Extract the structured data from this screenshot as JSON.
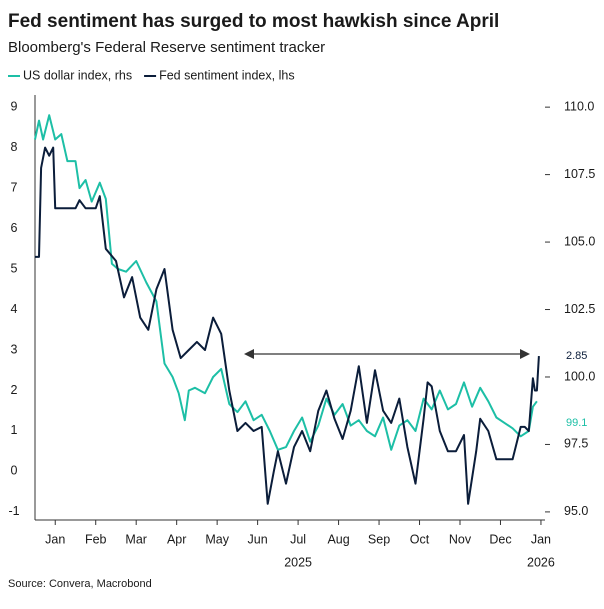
{
  "chart_data": {
    "type": "line",
    "title": "Fed sentiment has surged to most hawkish since April",
    "subtitle": "Bloomberg's Federal Reserve sentiment tracker",
    "source": "Source: Convera, Macrobond",
    "xlim": [
      0,
      12.6
    ],
    "xticks": [
      {
        "value": 0.5,
        "label": "Jan"
      },
      {
        "value": 1.5,
        "label": "Feb"
      },
      {
        "value": 2.5,
        "label": "Mar"
      },
      {
        "value": 3.5,
        "label": "Apr"
      },
      {
        "value": 4.5,
        "label": "May"
      },
      {
        "value": 5.5,
        "label": "Jun"
      },
      {
        "value": 6.5,
        "label": "Jul"
      },
      {
        "value": 7.5,
        "label": "Aug"
      },
      {
        "value": 8.5,
        "label": "Sep"
      },
      {
        "value": 9.5,
        "label": "Oct"
      },
      {
        "value": 10.5,
        "label": "Nov"
      },
      {
        "value": 11.5,
        "label": "Dec"
      },
      {
        "value": 12.5,
        "label": "Jan"
      }
    ],
    "year_labels": [
      {
        "value": 6.5,
        "label": "2025"
      },
      {
        "value": 12.5,
        "label": "2026"
      }
    ],
    "ylim": [
      -1.2,
      9.3
    ],
    "yticks": [
      -1,
      0,
      1,
      2,
      3,
      4,
      5,
      6,
      7,
      8,
      9
    ],
    "y2lim": [
      94.7,
      110.45
    ],
    "y2ticks": [
      {
        "value": 95,
        "label": "95.0"
      },
      {
        "value": 97.5,
        "label": "97.5"
      },
      {
        "value": 100,
        "label": "100.0"
      },
      {
        "value": 102.5,
        "label": "102.5"
      },
      {
        "value": 105,
        "label": "105.0"
      },
      {
        "value": 107.5,
        "label": "107.5"
      },
      {
        "value": 110,
        "label": "110.0"
      }
    ],
    "series": [
      {
        "name": "US dollar index, rhs",
        "color": "#1dbfa6",
        "axis": "y2",
        "x": [
          0,
          0.1,
          0.2,
          0.35,
          0.5,
          0.65,
          0.8,
          1.0,
          1.1,
          1.25,
          1.4,
          1.6,
          1.75,
          1.9,
          2.05,
          2.25,
          2.5,
          2.75,
          3.0,
          3.2,
          3.4,
          3.55,
          3.7,
          3.8,
          3.95,
          4.2,
          4.4,
          4.6,
          4.8,
          5.0,
          5.2,
          5.4,
          5.6,
          5.8,
          6.0,
          6.2,
          6.4,
          6.6,
          6.8,
          7.0,
          7.2,
          7.4,
          7.6,
          7.8,
          8.0,
          8.2,
          8.4,
          8.6,
          8.8,
          9.0,
          9.2,
          9.4,
          9.6,
          9.8,
          10.0,
          10.2,
          10.4,
          10.6,
          10.8,
          11.0,
          11.2,
          11.4,
          11.6,
          11.8,
          12.0,
          12.2,
          12.3,
          12.4
        ],
        "values": [
          108.8,
          109.5,
          108.8,
          109.7,
          108.8,
          109.0,
          108.0,
          108.0,
          107.0,
          107.3,
          106.5,
          107.2,
          106.6,
          104.2,
          104.0,
          103.9,
          104.3,
          103.5,
          102.8,
          100.5,
          100.0,
          99.4,
          98.4,
          99.5,
          99.6,
          99.4,
          100.0,
          100.3,
          99.0,
          98.7,
          99.1,
          98.4,
          98.6,
          98.0,
          97.3,
          97.4,
          98.0,
          98.5,
          97.6,
          98.2,
          99.2,
          98.6,
          99.0,
          98.2,
          98.4,
          98.0,
          97.8,
          98.5,
          97.3,
          98.2,
          98.4,
          98.0,
          99.2,
          98.8,
          99.5,
          98.8,
          99.0,
          99.8,
          98.9,
          99.6,
          99.1,
          98.5,
          98.3,
          98.1,
          97.8,
          98.0,
          98.9,
          99.1
        ]
      },
      {
        "name": "Fed sentiment index, lhs",
        "color": "#0b1d3a",
        "x": [
          0,
          0.1,
          0.15,
          0.25,
          0.35,
          0.45,
          0.5,
          0.75,
          1.0,
          1.1,
          1.25,
          1.5,
          1.6,
          1.75,
          2.0,
          2.2,
          2.4,
          2.6,
          2.8,
          3.0,
          3.2,
          3.4,
          3.6,
          3.8,
          4.0,
          4.2,
          4.4,
          4.6,
          4.8,
          5.0,
          5.2,
          5.4,
          5.6,
          5.75,
          5.9,
          6.0,
          6.2,
          6.4,
          6.6,
          6.8,
          7.0,
          7.2,
          7.4,
          7.6,
          7.8,
          8.0,
          8.2,
          8.4,
          8.6,
          8.8,
          9.0,
          9.2,
          9.4,
          9.6,
          9.7,
          9.8,
          10.0,
          10.2,
          10.4,
          10.6,
          10.7,
          10.9,
          11.0,
          11.2,
          11.4,
          11.6,
          11.8,
          12.0,
          12.1,
          12.2,
          12.3,
          12.35,
          12.4,
          12.45
        ],
        "values": [
          5.3,
          5.3,
          7.5,
          8.0,
          7.8,
          8.0,
          6.5,
          6.5,
          6.5,
          6.7,
          6.5,
          6.5,
          6.8,
          5.5,
          5.2,
          4.3,
          4.8,
          3.8,
          3.5,
          4.5,
          5.0,
          3.5,
          2.8,
          3.0,
          3.2,
          3.0,
          3.8,
          3.4,
          2.0,
          1.0,
          1.2,
          1.0,
          1.1,
          -0.8,
          0,
          0.5,
          -0.3,
          0.6,
          1.0,
          0.5,
          1.5,
          2.0,
          1.3,
          0.8,
          1.5,
          2.6,
          1.2,
          2.5,
          1.5,
          1.2,
          1.8,
          0.6,
          -0.3,
          1.3,
          2.2,
          2.1,
          1.0,
          0.5,
          0.5,
          0.9,
          -0.8,
          0.5,
          1.3,
          1.0,
          0.3,
          0.3,
          0.3,
          1.1,
          1.1,
          1.0,
          2.3,
          2.0,
          2.0,
          2.85
        ]
      }
    ]
  }
}
